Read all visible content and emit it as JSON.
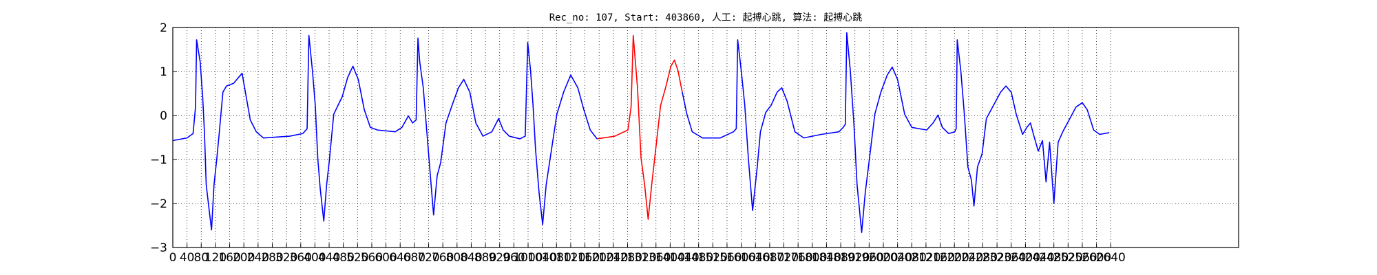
{
  "chart_data": {
    "type": "line",
    "title": "Rec_no: 107, Start: 403860, 人工: 起搏心跳, 算法: 起搏心跳",
    "xlim": [
      0,
      3000
    ],
    "xticks": [
      0,
      40,
      80,
      120,
      160,
      200,
      240,
      280,
      320,
      360,
      400,
      440,
      480,
      520,
      560,
      600,
      640,
      680,
      720,
      760,
      800,
      840,
      880,
      920,
      960,
      1000,
      1040,
      1080,
      1120,
      1160,
      1200,
      1240,
      1280,
      1320,
      1360,
      1400,
      1440,
      1480,
      1520,
      1560,
      1600,
      1640,
      1680,
      1720,
      1760,
      1800,
      1840,
      1880,
      1920,
      1960,
      2000,
      2040,
      2080,
      2120,
      2160,
      2200,
      2240,
      2280,
      2320,
      2360,
      2400,
      2440,
      2480,
      2520,
      2560,
      2600,
      2640
    ],
    "ylim": [
      -3,
      2
    ],
    "yticks": [
      {
        "value": -3,
        "label": "−3"
      },
      {
        "value": -2,
        "label": "−2"
      },
      {
        "value": -1,
        "label": "−1"
      },
      0,
      1,
      2
    ],
    "grid": true,
    "series": [
      {
        "color": "#0000ff",
        "x": [
          0,
          40,
          57,
          64,
          67,
          77,
          84,
          89,
          94,
          101,
          109,
          116,
          124,
          131,
          141,
          151,
          171,
          195,
          218,
          235,
          255,
          329,
          366,
          378,
          383,
          393,
          401,
          408,
          415,
          425,
          433,
          440,
          453,
          465,
          477,
          492,
          507,
          522,
          539,
          556,
          576,
          626,
          645,
          663,
          675,
          685,
          690,
          695,
          705,
          715,
          725,
          734,
          744,
          754,
          769,
          786,
          804,
          819,
          836,
          853,
          873,
          898,
          917,
          930,
          947,
          977,
          992,
          999,
          1007,
          1014,
          1021,
          1031,
          1041,
          1051,
          1066,
          1081,
          1100,
          1120,
          1140,
          1157,
          1175,
          1194
        ],
        "values": [
          -0.57,
          -0.51,
          -0.41,
          0.2,
          1.72,
          1.22,
          0.43,
          -0.37,
          -1.57,
          -2.06,
          -2.6,
          -1.57,
          -0.97,
          -0.37,
          0.53,
          0.67,
          0.73,
          0.96,
          -0.1,
          -0.37,
          -0.51,
          -0.47,
          -0.41,
          -0.3,
          1.82,
          1.02,
          0.23,
          -0.97,
          -1.67,
          -2.4,
          -1.57,
          -1.07,
          0.03,
          0.23,
          0.43,
          0.86,
          1.12,
          0.82,
          0.13,
          -0.27,
          -0.33,
          -0.37,
          -0.27,
          -0.01,
          -0.17,
          -0.1,
          1.76,
          1.22,
          0.63,
          -0.37,
          -1.37,
          -2.26,
          -1.37,
          -1.07,
          -0.17,
          0.23,
          0.63,
          0.82,
          0.53,
          -0.17,
          -0.47,
          -0.37,
          -0.07,
          -0.33,
          -0.47,
          -0.53,
          -0.47,
          1.66,
          1.02,
          0.23,
          -0.77,
          -1.76,
          -2.48,
          -1.57,
          -0.77,
          0.03,
          0.53,
          0.92,
          0.63,
          0.13,
          -0.33,
          -0.53
        ]
      },
      {
        "color": "#ff0000",
        "x": [
          1194,
          1244,
          1281,
          1290,
          1296,
          1308,
          1318,
          1328,
          1338,
          1348,
          1362,
          1373,
          1387,
          1402,
          1412,
          1422,
          1434
        ],
        "values": [
          -0.53,
          -0.47,
          -0.33,
          0.2,
          1.82,
          0.63,
          -0.97,
          -1.57,
          -2.36,
          -1.57,
          -0.57,
          0.23,
          0.63,
          1.12,
          1.26,
          1.02,
          0.53
        ]
      },
      {
        "color": "#0000ff",
        "x": [
          1434,
          1447,
          1462,
          1491,
          1541,
          1578,
          1586,
          1590,
          1600,
          1610,
          1620,
          1632,
          1645,
          1654,
          1669,
          1684,
          1701,
          1714,
          1729,
          1751,
          1776,
          1825,
          1875,
          1887,
          1893,
          1897,
          1907,
          1917,
          1926,
          1939,
          1949,
          1961,
          1976,
          1993,
          2011,
          2025,
          2040,
          2060,
          2080,
          2122,
          2140,
          2154,
          2166,
          2184,
          2201,
          2205,
          2208,
          2218,
          2228,
          2238,
          2248,
          2255,
          2265,
          2278,
          2290,
          2310,
          2330,
          2345,
          2360,
          2374,
          2392,
          2404,
          2414,
          2424,
          2436,
          2448,
          2458,
          2468,
          2480,
          2492,
          2505,
          2525,
          2542,
          2560,
          2574,
          2592,
          2609,
          2636
        ],
        "values": [
          0.53,
          0.03,
          -0.37,
          -0.51,
          -0.51,
          -0.37,
          -0.3,
          1.72,
          1.02,
          0.23,
          -0.97,
          -2.16,
          -1.17,
          -0.37,
          0.07,
          0.23,
          0.53,
          0.63,
          0.33,
          -0.37,
          -0.51,
          -0.43,
          -0.37,
          -0.27,
          -0.2,
          1.88,
          1.02,
          -0.17,
          -1.57,
          -2.66,
          -1.76,
          -0.97,
          0.03,
          0.53,
          0.92,
          1.1,
          0.82,
          0.03,
          -0.27,
          -0.33,
          -0.17,
          0.01,
          -0.27,
          -0.41,
          -0.37,
          -0.3,
          1.72,
          1.02,
          0.03,
          -1.17,
          -1.47,
          -2.06,
          -1.17,
          -0.87,
          -0.07,
          0.23,
          0.53,
          0.67,
          0.53,
          0.03,
          -0.43,
          -0.27,
          -0.17,
          -0.47,
          -0.81,
          -0.57,
          -1.51,
          -0.61,
          -2.0,
          -0.61,
          -0.37,
          -0.07,
          0.19,
          0.29,
          0.13,
          -0.33,
          -0.43,
          -0.39
        ]
      }
    ]
  }
}
